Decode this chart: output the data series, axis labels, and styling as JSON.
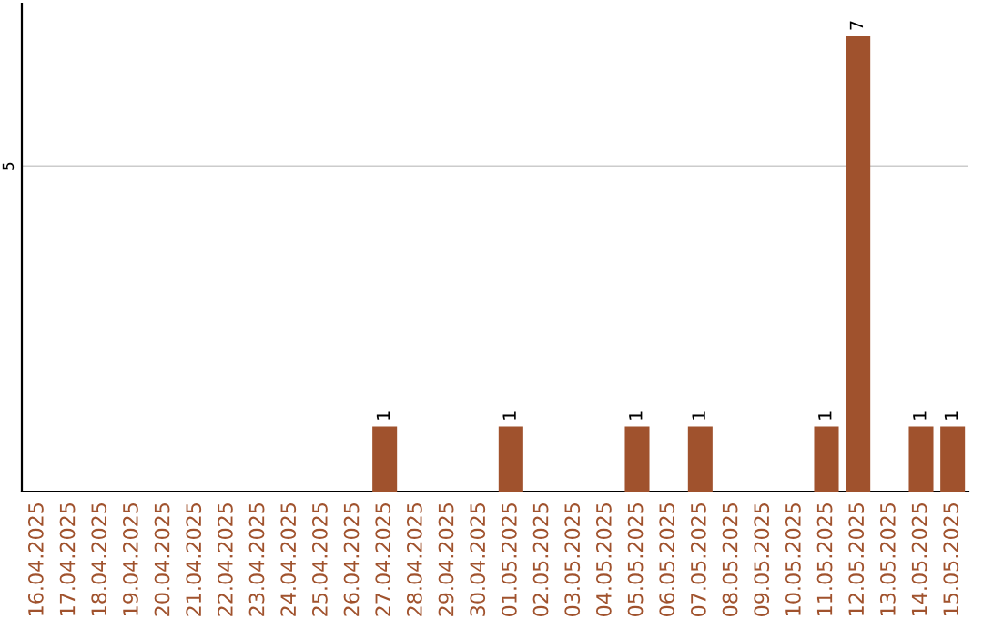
{
  "chart_data": {
    "type": "bar",
    "categories": [
      "16.04.2025",
      "17.04.2025",
      "18.04.2025",
      "19.04.2025",
      "20.04.2025",
      "21.04.2025",
      "22.04.2025",
      "23.04.2025",
      "24.04.2025",
      "25.04.2025",
      "26.04.2025",
      "27.04.2025",
      "28.04.2025",
      "29.04.2025",
      "30.04.2025",
      "01.05.2025",
      "02.05.2025",
      "03.05.2025",
      "04.05.2025",
      "05.05.2025",
      "06.05.2025",
      "07.05.2025",
      "08.05.2025",
      "09.05.2025",
      "10.05.2025",
      "11.05.2025",
      "12.05.2025",
      "13.05.2025",
      "14.05.2025",
      "15.05.2025"
    ],
    "values": [
      0,
      0,
      0,
      0,
      0,
      0,
      0,
      0,
      0,
      0,
      0,
      1,
      0,
      0,
      0,
      1,
      0,
      0,
      0,
      1,
      0,
      1,
      0,
      0,
      0,
      1,
      7,
      0,
      1,
      1
    ],
    "value_labels": [
      null,
      null,
      null,
      null,
      null,
      null,
      null,
      null,
      null,
      null,
      null,
      "1",
      null,
      null,
      null,
      "1",
      null,
      null,
      null,
      "1",
      null,
      "1",
      null,
      null,
      null,
      "1",
      "7",
      null,
      "1",
      "1"
    ],
    "color": "#a0522d",
    "ylim": [
      0,
      7.5
    ],
    "yticks": [
      5
    ],
    "grid": "y",
    "legend": false
  }
}
